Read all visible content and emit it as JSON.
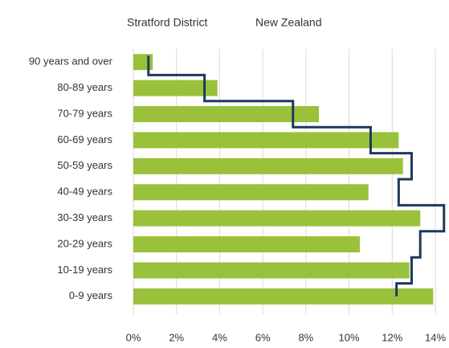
{
  "chart_data": {
    "type": "bar",
    "orientation": "horizontal",
    "categories": [
      "90 years and over",
      "80-89 years",
      "70-79 years",
      "60-69 years",
      "50-59 years",
      "40-49 years",
      "30-39 years",
      "20-29 years",
      "10-19 years",
      "0-9 years"
    ],
    "series": [
      {
        "name": "Stratford District",
        "color": "#9ac13c",
        "style": "bar",
        "values": [
          0.9,
          3.9,
          8.6,
          12.3,
          12.5,
          10.9,
          13.3,
          10.5,
          12.8,
          13.9
        ]
      },
      {
        "name": "New Zealand",
        "color": "#1b3a5c",
        "style": "step",
        "values": [
          0.7,
          3.3,
          7.4,
          11.0,
          12.9,
          12.3,
          14.4,
          13.3,
          12.9,
          12.2
        ]
      }
    ],
    "xlim": [
      0,
      14
    ],
    "xticks": [
      {
        "value": 0,
        "label": "0%"
      },
      {
        "value": 2,
        "label": "2%"
      },
      {
        "value": 4,
        "label": "4%"
      },
      {
        "value": 6,
        "label": "6%"
      },
      {
        "value": 8,
        "label": "8%"
      },
      {
        "value": 10,
        "label": "10%"
      },
      {
        "value": 12,
        "label": "12%"
      },
      {
        "value": 14,
        "label": "14%"
      }
    ],
    "grid": true
  }
}
